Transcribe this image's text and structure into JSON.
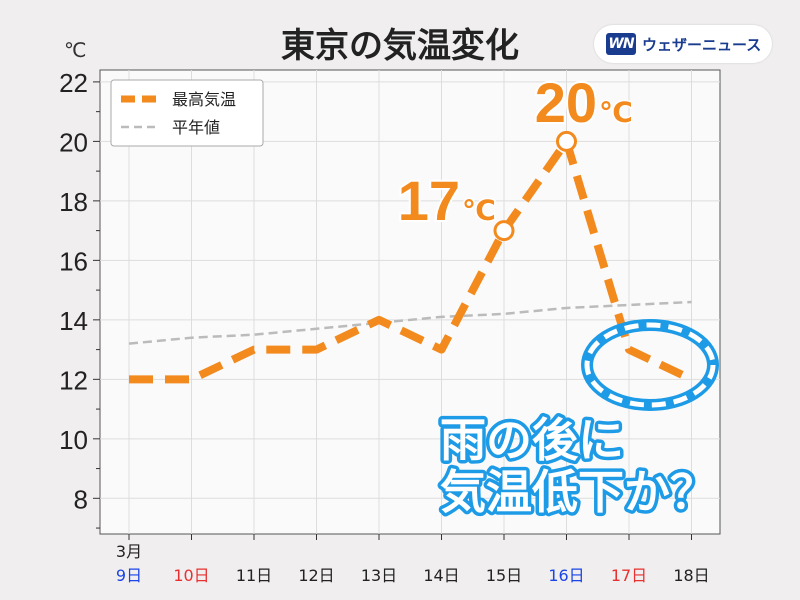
{
  "header": {
    "title": "東京の気温変化",
    "unit": "℃",
    "logo_mark": "WN",
    "logo_text": "ウェザーニュース"
  },
  "callout": {
    "line1": "雨の後に",
    "line2": "気温低下か？"
  },
  "chart_data": {
    "type": "line",
    "title": "東京の気温変化",
    "ylabel": "℃",
    "ylim": [
      6.8,
      22.4
    ],
    "yticks": [
      8,
      10,
      12,
      14,
      16,
      18,
      20,
      22
    ],
    "month_label": "3月",
    "categories": [
      "9日",
      "10日",
      "11日",
      "12日",
      "13日",
      "14日",
      "15日",
      "16日",
      "17日",
      "18日"
    ],
    "category_colors": [
      "#1a44e8",
      "#e83030",
      "#222222",
      "#222222",
      "#222222",
      "#222222",
      "#222222",
      "#1a44e8",
      "#e83030",
      "#222222"
    ],
    "series": [
      {
        "name": "最高気温",
        "values": [
          12,
          12,
          13,
          13,
          14,
          13,
          17,
          20,
          13,
          12
        ],
        "color": "#f28a1e"
      },
      {
        "name": "平年値",
        "values": [
          13.2,
          13.4,
          13.5,
          13.7,
          13.9,
          14.1,
          14.2,
          14.4,
          14.5,
          14.6
        ],
        "color": "#bbbbbb"
      }
    ],
    "annotations": [
      {
        "index": 6,
        "value_label": "17",
        "unit": "℃"
      },
      {
        "index": 7,
        "value_label": "20",
        "unit": "℃"
      }
    ],
    "legend": "top-left",
    "grid": true
  }
}
